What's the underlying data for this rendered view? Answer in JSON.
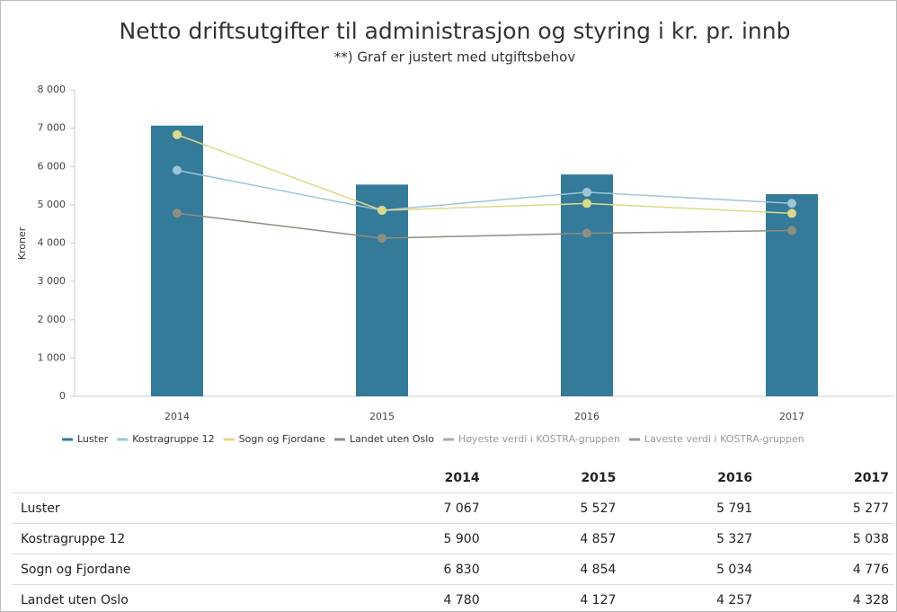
{
  "chart_data": {
    "type": "bar",
    "title": "Netto driftsutgifter til administrasjon og styring i kr. pr. innb",
    "subtitle": "**) Graf er justert med utgiftsbehov",
    "y_label": "Kroner",
    "categories": [
      "2014",
      "2015",
      "2016",
      "2017"
    ],
    "series": [
      {
        "name": "Luster",
        "type": "bar",
        "color": "#347a99",
        "values": [
          7067,
          5527,
          5791,
          5277
        ]
      },
      {
        "name": "Kostragruppe 12",
        "type": "line",
        "color": "#9cc5d5",
        "values": [
          5900,
          4857,
          5327,
          5038
        ]
      },
      {
        "name": "Sogn og Fjordane",
        "type": "line",
        "color": "#ddd98a",
        "values": [
          6830,
          4854,
          5034,
          4776
        ]
      },
      {
        "name": "Landet uten Oslo",
        "type": "line",
        "color": "#8e8e80",
        "values": [
          4780,
          4127,
          4257,
          4328
        ]
      },
      {
        "name": "Høyeste verdi i KOSTRA-gruppen",
        "type": "line",
        "color": "#aaaaaa",
        "hidden": true
      },
      {
        "name": "Laveste verdi i KOSTRA-gruppen",
        "type": "line",
        "color": "#999999",
        "hidden": true
      }
    ],
    "ylim": [
      0,
      8000
    ],
    "yticks": [
      0,
      {
        "value": 1000,
        "label": "1 000"
      },
      {
        "value": 2000,
        "label": "2 000"
      },
      {
        "value": 3000,
        "label": "3 000"
      },
      {
        "value": 4000,
        "label": "4 000"
      },
      {
        "value": 5000,
        "label": "5 000"
      },
      {
        "value": 6000,
        "label": "6 000"
      },
      {
        "value": 7000,
        "label": "7 000"
      },
      {
        "value": 8000,
        "label": "8 000"
      }
    ],
    "legend": "bottom"
  },
  "table": {
    "header": [
      "2014",
      "2015",
      "2016",
      "2017"
    ],
    "rows": [
      [
        "Luster",
        "7 067",
        "5 527",
        "5 791",
        "5 277"
      ],
      [
        "Kostragruppe 12",
        "5 900",
        "4 857",
        "5 327",
        "5 038"
      ],
      [
        "Sogn og Fjordane",
        "6 830",
        "4 854",
        "5 034",
        "4 776"
      ],
      [
        "Landet uten Oslo",
        "4 780",
        "4 127",
        "4 257",
        "4 328"
      ]
    ]
  }
}
